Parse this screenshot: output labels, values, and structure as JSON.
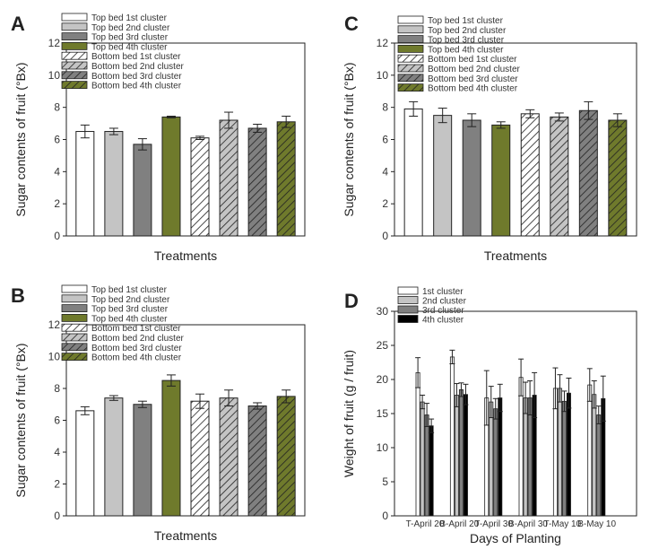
{
  "colors": {
    "white": "#ffffff",
    "light_gray": "#c4c4c4",
    "dark_gray": "#808080",
    "olive": "#6f7a2c",
    "stroke": "#222222"
  },
  "chart_data": [
    {
      "panel": "A",
      "type": "bar",
      "xlabel": "Treatments",
      "ylabel": "Sugar contents of fruit (°Bx)",
      "ylim": [
        0,
        12
      ],
      "yticks": [
        0,
        2,
        4,
        6,
        8,
        10,
        12
      ],
      "legend": [
        "Top bed 1st cluster",
        "Top bed 2nd cluster",
        "Top bed 3rd cluster",
        "Top bed 4th cluster",
        "Bottom bed 1st cluster",
        "Bottom bed 2nd cluster",
        "Bottom bed 3rd cluster",
        "Bottom bed 4th cluster"
      ],
      "legend_position": "top-left",
      "values": [
        6.5,
        6.5,
        5.7,
        7.4,
        6.1,
        7.2,
        6.7,
        7.1
      ],
      "errors": [
        0.4,
        0.2,
        0.35,
        0.05,
        0.1,
        0.5,
        0.25,
        0.35
      ]
    },
    {
      "panel": "B",
      "type": "bar",
      "xlabel": "Treatments",
      "ylabel": "Sugar contents of fruit (°Bx)",
      "ylim": [
        0,
        12
      ],
      "yticks": [
        0,
        2,
        4,
        6,
        8,
        10,
        12
      ],
      "legend": [
        "Top bed 1st cluster",
        "Top bed 2nd cluster",
        "Top bed 3rd cluster",
        "Top bed 4th cluster",
        "Bottom bed 1st cluster",
        "Bottom bed 2nd cluster",
        "Bottom bed 3rd cluster",
        "Bottom bed 4th cluster"
      ],
      "legend_position": "top-left",
      "values": [
        6.6,
        7.4,
        7.0,
        8.5,
        7.2,
        7.4,
        6.9,
        7.5
      ],
      "errors": [
        0.25,
        0.15,
        0.2,
        0.35,
        0.45,
        0.5,
        0.2,
        0.4
      ]
    },
    {
      "panel": "C",
      "type": "bar",
      "xlabel": "Treatments",
      "ylabel": "Sugar contents of fruit (°Bx)",
      "ylim": [
        0,
        12
      ],
      "yticks": [
        0,
        2,
        4,
        6,
        8,
        10,
        12
      ],
      "legend": [
        "Top bed 1st cluster",
        "Top bed 2nd cluster",
        "Top bed 3rd cluster",
        "Top bed 4th cluster",
        "Bottom bed 1st cluster",
        "Bottom bed 2nd cluster",
        "Bottom bed 3rd cluster",
        "Bottom bed 4th cluster"
      ],
      "legend_position": "top-left",
      "values": [
        7.9,
        7.5,
        7.2,
        6.9,
        7.6,
        7.4,
        7.8,
        7.2
      ],
      "errors": [
        0.45,
        0.45,
        0.4,
        0.2,
        0.25,
        0.25,
        0.55,
        0.4
      ]
    },
    {
      "panel": "D",
      "type": "bar",
      "xlabel": "Days of Planting",
      "ylabel": "Weight of fruit (g / fruit)",
      "ylim": [
        0,
        30
      ],
      "yticks": [
        0,
        5,
        10,
        15,
        20,
        25,
        30
      ],
      "legend_position": "top-left",
      "categories": [
        "T-April 20",
        "B-April 20",
        "T-April 30",
        "B-April 30",
        "T-May 10",
        "B-May 10"
      ],
      "series": [
        {
          "name": "1st cluster",
          "values": [
            21.0,
            23.3,
            17.3,
            20.3,
            18.7,
            19.2
          ],
          "errors": [
            2.2,
            1.0,
            4.0,
            2.7,
            3.0,
            2.4
          ]
        },
        {
          "name": "2nd cluster",
          "values": [
            16.7,
            17.7,
            16.7,
            17.3,
            18.7,
            17.8
          ],
          "errors": [
            1.0,
            1.7,
            2.3,
            2.3,
            2.0,
            2.0
          ]
        },
        {
          "name": "3rd cluster",
          "values": [
            14.8,
            18.5,
            15.7,
            17.3,
            16.8,
            14.8
          ],
          "errors": [
            1.7,
            1.0,
            1.5,
            2.5,
            1.5,
            1.3
          ]
        },
        {
          "name": "4th cluster",
          "values": [
            13.2,
            17.8,
            17.3,
            17.7,
            18.0,
            17.2
          ],
          "errors": [
            1.0,
            1.5,
            2.0,
            3.3,
            2.2,
            3.3
          ]
        }
      ]
    }
  ]
}
